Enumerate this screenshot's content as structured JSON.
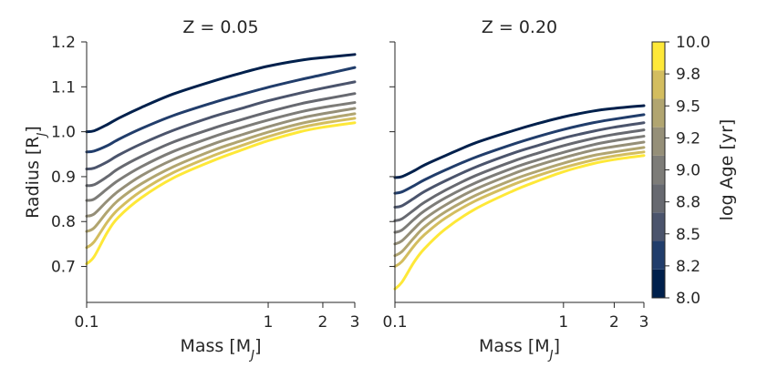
{
  "chart_data": [
    {
      "type": "line",
      "title": "Z = 0.05",
      "xlabel": "Mass [M_J]",
      "ylabel": "Radius [R_J]",
      "xscale": "log",
      "xlim": [
        0.1,
        3
      ],
      "ylim": [
        0.62,
        1.2
      ],
      "xticks": [
        0.1,
        1,
        2,
        3
      ],
      "xtick_labels": [
        "0.1",
        "1",
        "2",
        "3"
      ],
      "yticks": [
        0.7,
        0.8,
        0.9,
        1.0,
        1.1,
        1.2
      ],
      "ytick_labels": [
        "0.7",
        "0.8",
        "0.9",
        "1.0",
        "1.1",
        "1.2"
      ],
      "x": [
        0.1,
        0.11,
        0.13,
        0.15,
        0.2,
        0.3,
        0.5,
        0.7,
        1.0,
        1.5,
        2.0,
        3.0
      ],
      "series": [
        {
          "name": "8.0",
          "values": [
            1.0,
            1.002,
            1.016,
            1.03,
            1.054,
            1.084,
            1.113,
            1.13,
            1.146,
            1.159,
            1.165,
            1.172
          ]
        },
        {
          "name": "8.2",
          "values": [
            0.955,
            0.957,
            0.969,
            0.983,
            1.007,
            1.036,
            1.065,
            1.082,
            1.099,
            1.116,
            1.127,
            1.143
          ]
        },
        {
          "name": "8.5",
          "values": [
            0.917,
            0.919,
            0.933,
            0.948,
            0.973,
            1.003,
            1.034,
            1.051,
            1.069,
            1.086,
            1.097,
            1.111
          ]
        },
        {
          "name": "8.8",
          "values": [
            0.88,
            0.882,
            0.9,
            0.918,
            0.945,
            0.977,
            1.008,
            1.026,
            1.044,
            1.062,
            1.072,
            1.085
          ]
        },
        {
          "name": "9.0",
          "values": [
            0.847,
            0.85,
            0.873,
            0.892,
            0.922,
            0.956,
            0.989,
            1.008,
            1.026,
            1.044,
            1.054,
            1.065
          ]
        },
        {
          "name": "9.2",
          "values": [
            0.812,
            0.817,
            0.846,
            0.868,
            0.902,
            0.938,
            0.973,
            0.992,
            1.011,
            1.03,
            1.04,
            1.052
          ]
        },
        {
          "name": "9.5",
          "values": [
            0.778,
            0.786,
            0.822,
            0.848,
            0.884,
            0.922,
            0.959,
            0.979,
            0.999,
            1.018,
            1.028,
            1.04
          ]
        },
        {
          "name": "9.8",
          "values": [
            0.742,
            0.755,
            0.799,
            0.828,
            0.868,
            0.909,
            0.947,
            0.968,
            0.989,
            1.009,
            1.019,
            1.03
          ]
        },
        {
          "name": "10.0",
          "values": [
            0.706,
            0.722,
            0.776,
            0.81,
            0.853,
            0.897,
            0.936,
            0.958,
            0.98,
            1.0,
            1.01,
            1.02
          ]
        }
      ]
    },
    {
      "type": "line",
      "title": "Z = 0.20",
      "xlabel": "Mass [M_J]",
      "ylabel": "",
      "xscale": "log",
      "xlim": [
        0.1,
        3
      ],
      "ylim": [
        0.62,
        1.2
      ],
      "xticks": [
        0.1,
        1,
        2,
        3
      ],
      "xtick_labels": [
        "0.1",
        "1",
        "2",
        "3"
      ],
      "x": [
        0.1,
        0.11,
        0.13,
        0.15,
        0.2,
        0.3,
        0.5,
        0.7,
        1.0,
        1.5,
        2.0,
        3.0
      ],
      "series": [
        {
          "name": "8.0",
          "values": [
            0.898,
            0.9,
            0.913,
            0.926,
            0.947,
            0.975,
            1.002,
            1.018,
            1.033,
            1.046,
            1.052,
            1.058
          ]
        },
        {
          "name": "8.2",
          "values": [
            0.863,
            0.866,
            0.88,
            0.893,
            0.915,
            0.943,
            0.972,
            0.989,
            1.005,
            1.02,
            1.028,
            1.038
          ]
        },
        {
          "name": "8.5",
          "values": [
            0.832,
            0.835,
            0.852,
            0.867,
            0.891,
            0.921,
            0.952,
            0.969,
            0.986,
            1.001,
            1.01,
            1.02
          ]
        },
        {
          "name": "8.8",
          "values": [
            0.802,
            0.806,
            0.826,
            0.843,
            0.87,
            0.902,
            0.934,
            0.952,
            0.969,
            0.985,
            0.994,
            1.004
          ]
        },
        {
          "name": "9.0",
          "values": [
            0.776,
            0.781,
            0.805,
            0.824,
            0.853,
            0.886,
            0.919,
            0.937,
            0.954,
            0.971,
            0.98,
            0.99
          ]
        },
        {
          "name": "9.2",
          "values": [
            0.75,
            0.757,
            0.784,
            0.806,
            0.837,
            0.872,
            0.906,
            0.925,
            0.942,
            0.959,
            0.967,
            0.977
          ]
        },
        {
          "name": "9.5",
          "values": [
            0.724,
            0.733,
            0.764,
            0.788,
            0.822,
            0.858,
            0.893,
            0.912,
            0.93,
            0.947,
            0.955,
            0.965
          ]
        },
        {
          "name": "9.8",
          "values": [
            0.7,
            0.711,
            0.746,
            0.771,
            0.808,
            0.846,
            0.882,
            0.902,
            0.92,
            0.937,
            0.946,
            0.955
          ]
        },
        {
          "name": "10.0",
          "values": [
            0.65,
            0.665,
            0.71,
            0.74,
            0.784,
            0.828,
            0.868,
            0.89,
            0.911,
            0.929,
            0.938,
            0.947
          ]
        }
      ]
    }
  ],
  "colorbar": {
    "label": "log Age [yr]",
    "ticks": [
      "8.0",
      "8.2",
      "8.5",
      "8.8",
      "9.0",
      "9.2",
      "9.5",
      "9.8",
      "10.0"
    ],
    "colors": [
      "#00204c",
      "#213d6b",
      "#4b546c",
      "#676970",
      "#7d7c78",
      "#958f78",
      "#b1a570",
      "#d3bd5f",
      "#fee838"
    ]
  }
}
